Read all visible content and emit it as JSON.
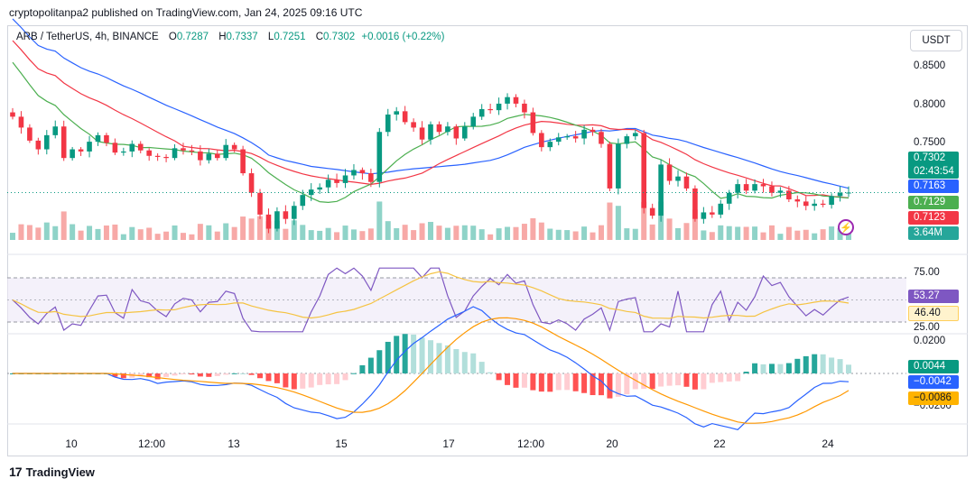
{
  "published": "cryptopolitanpa2 published on TradingView.com, Jan 24, 2025 09:16 UTC",
  "legend": {
    "symbol": "ARB / TetherUS, 4h, BINANCE",
    "o_label": "O",
    "o": "0.7287",
    "h_label": "H",
    "h": "0.7337",
    "l_label": "L",
    "l": "0.7251",
    "c_label": "C",
    "c": "0.7302",
    "change": "+0.0016 (+0.22%)"
  },
  "currency_button": "USDT",
  "price_axis": [
    "0.8500",
    "0.8000",
    "0.7500"
  ],
  "rsi_axis": [
    "75.00",
    "25.00"
  ],
  "macd_axis": [
    "0.0200",
    "−0.0200"
  ],
  "tags": {
    "last_price": "0.7302",
    "countdown": "02:43:54",
    "ma_blue": "0.7163",
    "ma_green": "0.7129",
    "ma_red": "0.7123",
    "volume": "3.64M",
    "rsi": "53.27",
    "rsi_ma": "46.40",
    "macd_hist": "0.0044",
    "macd": "−0.0042",
    "macd_signal": "−0.0086"
  },
  "x_axis": [
    "10",
    "12:00",
    "13",
    "15",
    "17",
    "12:00",
    "20",
    "22",
    "24"
  ],
  "branding": "TradingView",
  "colors": {
    "up": "#089981",
    "down": "#f23645",
    "ma_blue": "#2962ff",
    "ma_green": "#4caf50",
    "ma_red": "#f23645",
    "rsi": "#7e57c2",
    "signal": "#ff9800"
  },
  "chart_data": {
    "type": "candlestick",
    "symbol": "ARB / TetherUS",
    "interval": "4h",
    "ylim": [
      0.685,
      0.87
    ],
    "last": {
      "open": 0.7287,
      "high": 0.7337,
      "low": 0.7251,
      "close": 0.7302
    },
    "closes": [
      0.8,
      0.79,
      0.778,
      0.77,
      0.783,
      0.791,
      0.762,
      0.77,
      0.768,
      0.777,
      0.783,
      0.776,
      0.767,
      0.768,
      0.775,
      0.769,
      0.764,
      0.763,
      0.762,
      0.771,
      0.769,
      0.768,
      0.76,
      0.766,
      0.762,
      0.774,
      0.77,
      0.748,
      0.73,
      0.71,
      0.697,
      0.713,
      0.706,
      0.718,
      0.728,
      0.733,
      0.735,
      0.742,
      0.739,
      0.746,
      0.751,
      0.748,
      0.74,
      0.786,
      0.802,
      0.805,
      0.795,
      0.79,
      0.779,
      0.793,
      0.786,
      0.791,
      0.78,
      0.791,
      0.8,
      0.807,
      0.806,
      0.812,
      0.818,
      0.812,
      0.804,
      0.785,
      0.772,
      0.777,
      0.781,
      0.782,
      0.78,
      0.788,
      0.786,
      0.775,
      0.734,
      0.775,
      0.782,
      0.785,
      0.716,
      0.709,
      0.756,
      0.741,
      0.745,
      0.734,
      0.706,
      0.712,
      0.71,
      0.72,
      0.73,
      0.738,
      0.732,
      0.738,
      0.736,
      0.73,
      0.732,
      0.724,
      0.722,
      0.718,
      0.72,
      0.719,
      0.727,
      0.73,
      0.7302
    ],
    "rsi": {
      "value": 53.27,
      "ma": 46.4,
      "upper": 75,
      "lower": 25
    },
    "macd": {
      "histogram": 0.0044,
      "macd": -0.0042,
      "signal": -0.0086
    },
    "volume_last": "3.64M"
  }
}
